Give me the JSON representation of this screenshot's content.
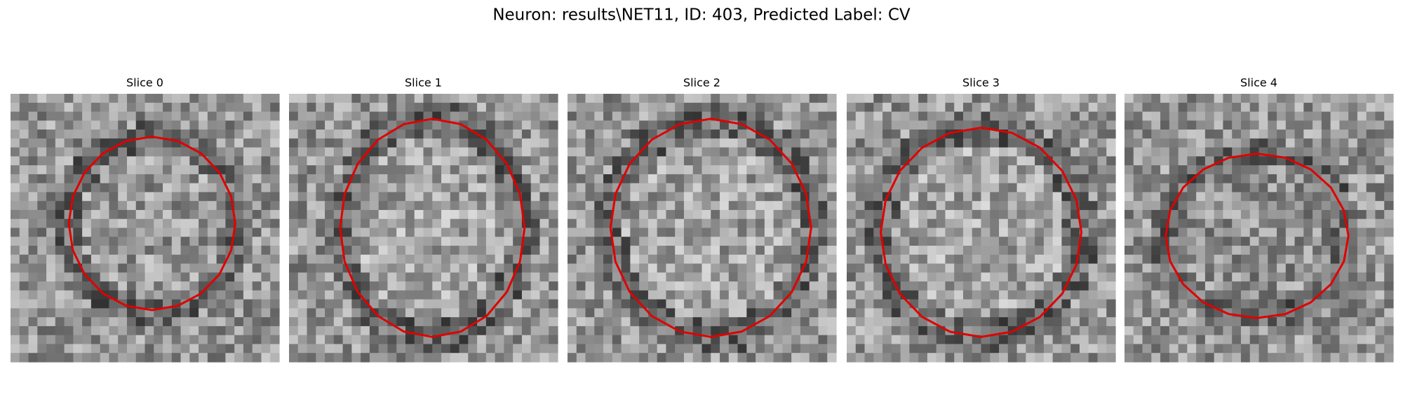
{
  "title": "Neuron: results\\NET11, ID: 403, Predicted Label: CV",
  "panels": [
    {
      "title": "Slice 0"
    },
    {
      "title": "Slice 1"
    },
    {
      "title": "Slice 2"
    },
    {
      "title": "Slice 3"
    },
    {
      "title": "Slice 4"
    }
  ]
}
